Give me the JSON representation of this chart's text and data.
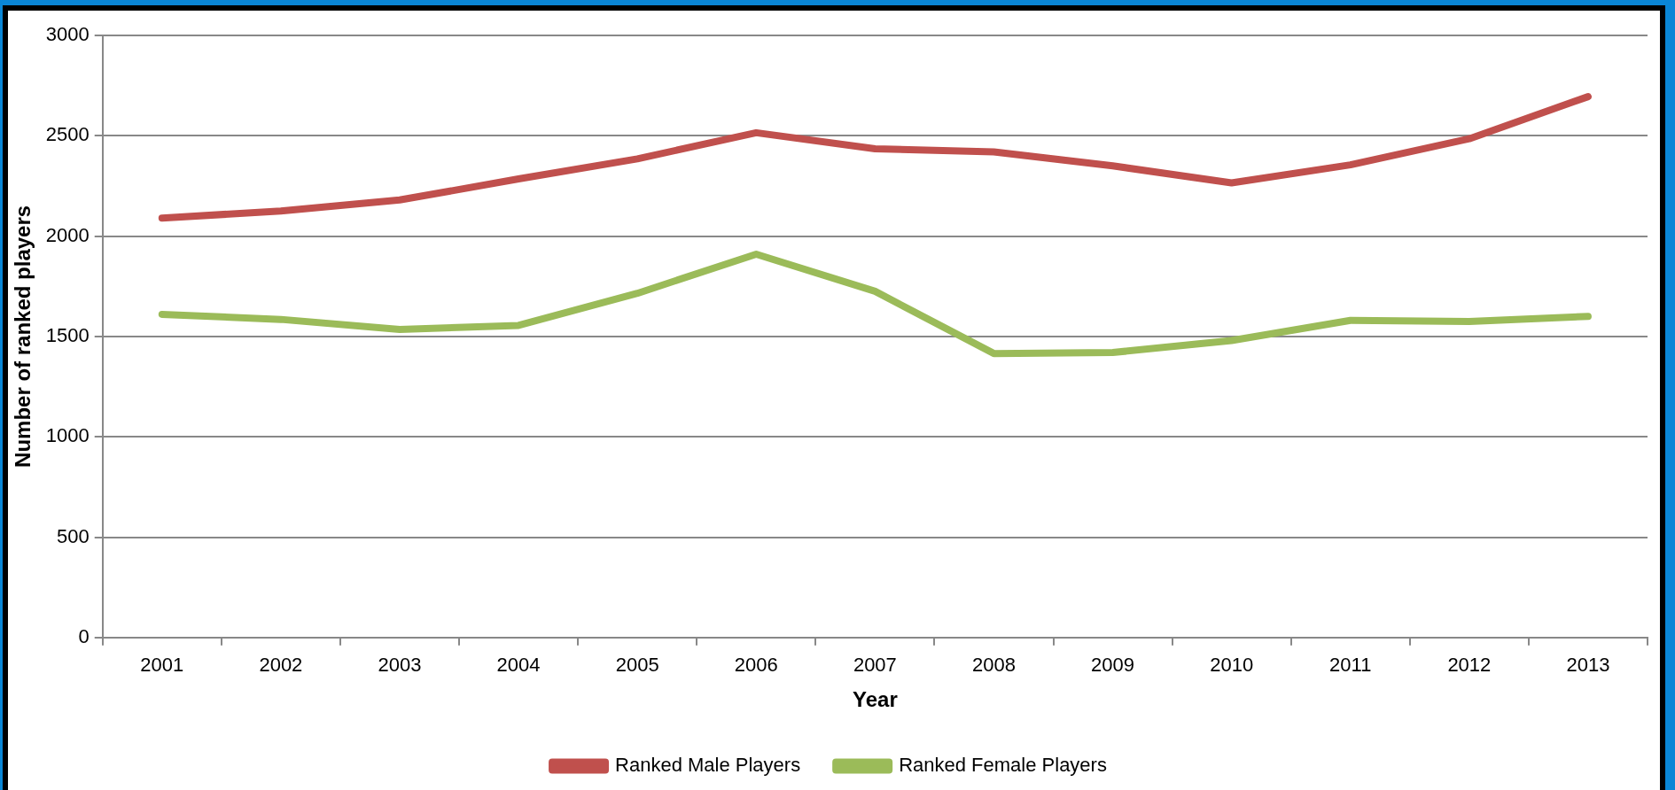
{
  "chart_data": {
    "type": "line",
    "xlabel": "Year",
    "ylabel": "Number of ranked players",
    "categories": [
      "2001",
      "2002",
      "2003",
      "2004",
      "2005",
      "2006",
      "2007",
      "2008",
      "2009",
      "2010",
      "2011",
      "2012",
      "2013"
    ],
    "series": [
      {
        "name": "Ranked Male Players",
        "color": "#c0504d",
        "values": [
          2090,
          2125,
          2180,
          2285,
          2385,
          2515,
          2435,
          2420,
          2350,
          2265,
          2355,
          2485,
          2695
        ]
      },
      {
        "name": "Ranked Female Players",
        "color": "#9bbb59",
        "values": [
          1610,
          1585,
          1535,
          1555,
          1715,
          1910,
          1725,
          1415,
          1420,
          1480,
          1580,
          1575,
          1600
        ]
      }
    ],
    "ylim": [
      0,
      3000
    ],
    "yticks": [
      0,
      500,
      1000,
      1500,
      2000,
      2500,
      3000
    ],
    "grid": "y",
    "legend": "bottom",
    "marker": "none",
    "line_style": "solid"
  }
}
